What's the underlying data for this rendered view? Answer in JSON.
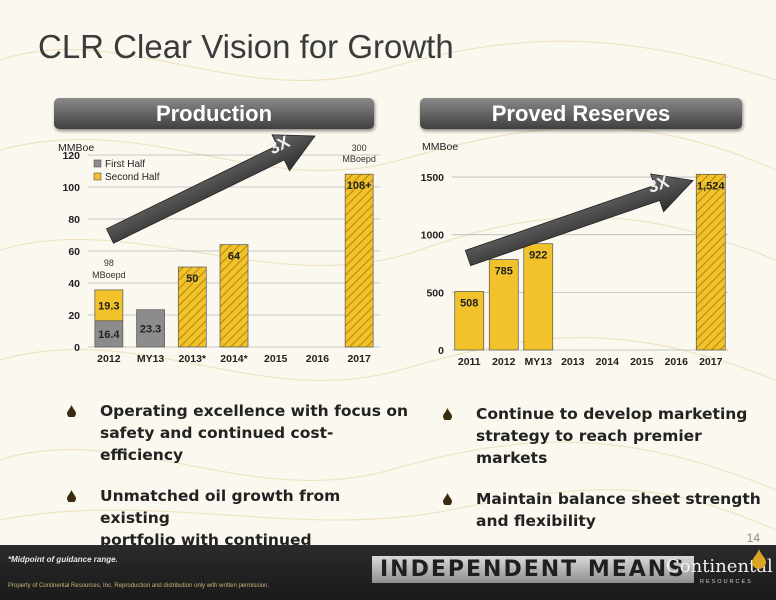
{
  "slide": {
    "title": "CLR Clear Vision for Growth",
    "page_number": "14"
  },
  "left_panel": {
    "header": "Production"
  },
  "right_panel": {
    "header": "Proved Reserves"
  },
  "colors": {
    "first_half": "#8c8c8c",
    "second_half": "#f2c22b",
    "hatched": "#f2c22b",
    "arrow": "#4a4a4a",
    "grid": "#b8b8b8"
  },
  "chart_data": [
    {
      "type": "bar",
      "name_shown": "Production",
      "ylabel": "MMBoe",
      "ylim": [
        0,
        120
      ],
      "yticks": [
        0,
        20,
        40,
        60,
        80,
        100,
        120
      ],
      "categories": [
        "2012",
        "MY13",
        "2013*",
        "2014*",
        "2015",
        "2016",
        "2017"
      ],
      "legend": [
        "First Half",
        "Second Half"
      ],
      "legend_position": "top-left",
      "bars": [
        {
          "category": "2012",
          "segments": [
            {
              "series": "First Half",
              "value": 16.4,
              "label": "16.4"
            },
            {
              "series": "Second Half",
              "value": 19.3,
              "label": "19.3"
            }
          ]
        },
        {
          "category": "MY13",
          "segments": [
            {
              "series": "First Half",
              "value": 23.3,
              "label": "23.3"
            }
          ]
        },
        {
          "category": "2013*",
          "segments": [
            {
              "series": "Second Half",
              "value": 50,
              "label": "50",
              "hatched": true
            }
          ]
        },
        {
          "category": "2014*",
          "segments": [
            {
              "series": "Second Half",
              "value": 64,
              "label": "64",
              "hatched": true
            }
          ]
        },
        {
          "category": "2017",
          "segments": [
            {
              "series": "Second Half",
              "value": 108,
              "label": "108+",
              "hatched": true
            }
          ]
        }
      ],
      "annotations": [
        {
          "text_top": "98",
          "text_bottom": "MBoepd",
          "category": "2012"
        },
        {
          "text_top": "300",
          "text_bottom": "MBoepd",
          "category": "2017"
        },
        {
          "text": "3X",
          "kind": "growth-arrow"
        }
      ]
    },
    {
      "type": "bar",
      "name_shown": "Proved Reserves",
      "ylabel": "MMBoe",
      "ylim": [
        0,
        1700
      ],
      "yticks": [
        0,
        500,
        1000,
        1500
      ],
      "categories": [
        "2011",
        "2012",
        "MY13",
        "2013",
        "2014",
        "2015",
        "2016",
        "2017"
      ],
      "bars": [
        {
          "category": "2011",
          "value": 508,
          "label": "508"
        },
        {
          "category": "2012",
          "value": 785,
          "label": "785"
        },
        {
          "category": "MY13",
          "value": 922,
          "label": "922"
        },
        {
          "category": "2017",
          "value": 1524,
          "label": "1,524",
          "hatched": true
        }
      ],
      "annotations": [
        {
          "text": "3X",
          "kind": "growth-arrow"
        }
      ]
    }
  ],
  "bullets_left": [
    {
      "line1": "Operating excellence with focus on",
      "line2": "safety and continued cost-efficiency"
    },
    {
      "line1": "Unmatched oil growth from existing",
      "line2": "portfolio with continued exploration"
    }
  ],
  "bullets_right": [
    {
      "line1": "Continue to develop marketing",
      "line2": "strategy to reach premier markets"
    },
    {
      "line1": "Maintain balance sheet strength",
      "line2": "and flexibility"
    }
  ],
  "footer": {
    "note": "*Midpoint of guidance range.",
    "tagline": "INDEPENDENT MEANS",
    "copyright": "Property of Continental Resources, Inc. Reproduction and distribution only with written permission.",
    "logo_name": "Continental",
    "logo_sub": "RESOURCES"
  }
}
